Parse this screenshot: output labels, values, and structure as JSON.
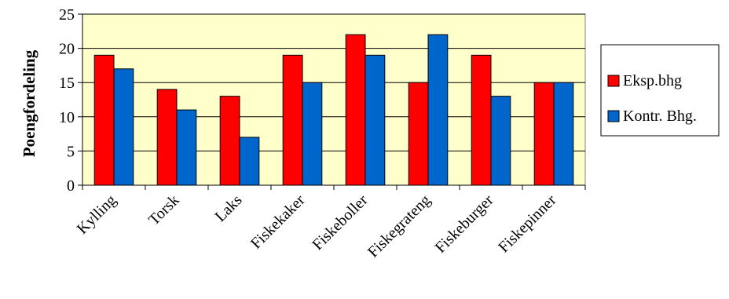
{
  "chart_data": {
    "type": "bar",
    "title": "",
    "xlabel": "",
    "ylabel": "Poengfordeling",
    "ylim": [
      0,
      25
    ],
    "yticks": [
      0,
      5,
      10,
      15,
      20,
      25
    ],
    "grid": true,
    "legend_position": "right",
    "plot_background": "#FFFFCC",
    "categories": [
      "Kylling",
      "Torsk",
      "Laks",
      "Fiskekaker",
      "Fiskeboller",
      "Fiskegrateng",
      "Fiskeburger",
      "Fiskepinner"
    ],
    "series": [
      {
        "name": "Eksp.bhg",
        "color": "#FF0000",
        "values": [
          19,
          14,
          13,
          19,
          22,
          15,
          19,
          15
        ]
      },
      {
        "name": "Kontr. Bhg.",
        "color": "#0066CC",
        "values": [
          17,
          11,
          7,
          15,
          19,
          22,
          13,
          15
        ]
      }
    ]
  }
}
